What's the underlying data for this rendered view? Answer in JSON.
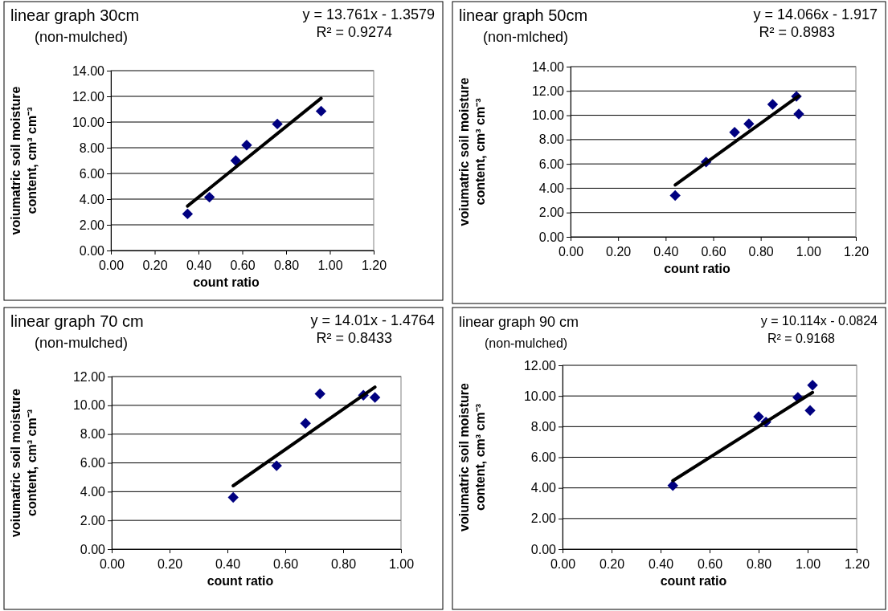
{
  "chart_data": [
    {
      "type": "scatter",
      "title": "linear graph 30cm",
      "subtitle": "(non-mulched)",
      "xlabel": "count ratio",
      "ylabel": "voiumatric soil moisture content, cm³ cm⁻³",
      "annotations": [
        "y = 13.761x - 1.3579",
        "R² = 0.9274"
      ],
      "grid": "y",
      "xlim": [
        0,
        1.2
      ],
      "xticks": [
        {
          "value": 0,
          "label": "0.00"
        },
        {
          "value": 0.2,
          "label": "0.20"
        },
        {
          "value": 0.4,
          "label": "0.40"
        },
        {
          "value": 0.6,
          "label": "0.60"
        },
        {
          "value": 0.8,
          "label": "0.80"
        },
        {
          "value": 1,
          "label": "1.00"
        },
        {
          "value": 1.2,
          "label": "1.20"
        }
      ],
      "ylim": [
        0,
        14
      ],
      "yticks": [
        {
          "value": 0,
          "label": "0.00"
        },
        {
          "value": 2,
          "label": "2.00"
        },
        {
          "value": 4,
          "label": "4.00"
        },
        {
          "value": 6,
          "label": "6.00"
        },
        {
          "value": 8,
          "label": "8.00"
        },
        {
          "value": 10,
          "label": "10.00"
        },
        {
          "value": 12,
          "label": "12.00"
        },
        {
          "value": 14,
          "label": "14.00"
        }
      ],
      "series": [
        {
          "marker": "diamond",
          "color": "#000080",
          "x": [
            0.35,
            0.45,
            0.57,
            0.62,
            0.76,
            0.96
          ],
          "values": [
            2.85,
            4.15,
            7.0,
            8.2,
            9.85,
            10.85
          ]
        },
        {
          "type": "line",
          "color": "#000000",
          "x": [
            0.35,
            0.96
          ],
          "values": [
            3.46,
            11.85
          ]
        }
      ]
    },
    {
      "type": "scatter",
      "title": "linear graph 50cm",
      "subtitle": "(non-mlched)",
      "xlabel": "count ratio",
      "ylabel": "voiumatric soil moisture content, cm³ cm⁻³",
      "annotations": [
        "y = 14.066x - 1.917",
        "R² = 0.8983"
      ],
      "grid": "y",
      "xlim": [
        0,
        1.2
      ],
      "xticks": [
        {
          "value": 0,
          "label": "0.00"
        },
        {
          "value": 0.2,
          "label": "0.20"
        },
        {
          "value": 0.4,
          "label": "0.40"
        },
        {
          "value": 0.6,
          "label": "0.60"
        },
        {
          "value": 0.8,
          "label": "0.80"
        },
        {
          "value": 1,
          "label": "1.00"
        },
        {
          "value": 1.2,
          "label": "1.20"
        }
      ],
      "ylim": [
        0,
        14
      ],
      "yticks": [
        {
          "value": 0,
          "label": "0.00"
        },
        {
          "value": 2,
          "label": "2.00"
        },
        {
          "value": 4,
          "label": "4.00"
        },
        {
          "value": 6,
          "label": "6.00"
        },
        {
          "value": 8,
          "label": "8.00"
        },
        {
          "value": 10,
          "label": "10.00"
        },
        {
          "value": 12,
          "label": "12.00"
        },
        {
          "value": 14,
          "label": "14.00"
        }
      ],
      "series": [
        {
          "marker": "diamond",
          "color": "#000080",
          "x": [
            0.44,
            0.57,
            0.69,
            0.75,
            0.85,
            0.95,
            0.96
          ],
          "values": [
            3.4,
            6.15,
            8.6,
            9.3,
            10.9,
            11.55,
            10.1
          ]
        },
        {
          "type": "line",
          "color": "#000000",
          "x": [
            0.44,
            0.96
          ],
          "values": [
            4.27,
            11.59
          ]
        }
      ]
    },
    {
      "type": "scatter",
      "title": "linear graph 70 cm",
      "subtitle": "(non-mulched)",
      "xlabel": "count ratio",
      "ylabel": "voiumatric soil moisture content, cm³ cm⁻³",
      "annotations": [
        "y = 14.01x - 1.4764",
        "R² = 0.8433"
      ],
      "grid": "y",
      "xlim": [
        0,
        1
      ],
      "xticks": [
        {
          "value": 0,
          "label": "0.00"
        },
        {
          "value": 0.2,
          "label": "0.20"
        },
        {
          "value": 0.4,
          "label": "0.40"
        },
        {
          "value": 0.6,
          "label": "0.60"
        },
        {
          "value": 0.8,
          "label": "0.80"
        },
        {
          "value": 1,
          "label": "1.00"
        }
      ],
      "ylim": [
        0,
        12
      ],
      "yticks": [
        {
          "value": 0,
          "label": "0.00"
        },
        {
          "value": 2,
          "label": "2.00"
        },
        {
          "value": 4,
          "label": "4.00"
        },
        {
          "value": 6,
          "label": "6.00"
        },
        {
          "value": 8,
          "label": "8.00"
        },
        {
          "value": 10,
          "label": "10.00"
        },
        {
          "value": 12,
          "label": "12.00"
        }
      ],
      "series": [
        {
          "marker": "diamond",
          "color": "#000080",
          "x": [
            0.42,
            0.57,
            0.67,
            0.72,
            0.87,
            0.91
          ],
          "values": [
            3.6,
            5.8,
            8.75,
            10.8,
            10.7,
            10.55
          ]
        },
        {
          "type": "line",
          "color": "#000000",
          "x": [
            0.42,
            0.91
          ],
          "values": [
            4.41,
            11.27
          ]
        }
      ]
    },
    {
      "type": "scatter",
      "title": "linear graph 90 cm",
      "subtitle": "(non-mulched)",
      "xlabel": "count ratio",
      "ylabel": "voiumatric soil moisture content, cm³ cm⁻³",
      "annotations": [
        "y = 10.114x - 0.0824",
        "R² = 0.9168"
      ],
      "grid": "y",
      "xlim": [
        0,
        1.2
      ],
      "xticks": [
        {
          "value": 0,
          "label": "0.00"
        },
        {
          "value": 0.2,
          "label": "0.20"
        },
        {
          "value": 0.4,
          "label": "0.40"
        },
        {
          "value": 0.6,
          "label": "0.60"
        },
        {
          "value": 0.8,
          "label": "0.80"
        },
        {
          "value": 1,
          "label": "1.00"
        },
        {
          "value": 1.2,
          "label": "1.20"
        }
      ],
      "ylim": [
        0,
        12
      ],
      "yticks": [
        {
          "value": 0,
          "label": "0.00"
        },
        {
          "value": 2,
          "label": "2.00"
        },
        {
          "value": 4,
          "label": "4.00"
        },
        {
          "value": 6,
          "label": "6.00"
        },
        {
          "value": 8,
          "label": "8.00"
        },
        {
          "value": 10,
          "label": "10.00"
        },
        {
          "value": 12,
          "label": "12.00"
        }
      ],
      "series": [
        {
          "marker": "diamond",
          "color": "#000080",
          "x": [
            0.45,
            0.8,
            0.83,
            0.96,
            1.01,
            1.02
          ],
          "values": [
            4.15,
            8.65,
            8.3,
            9.9,
            9.05,
            10.7
          ]
        },
        {
          "type": "line",
          "color": "#000000",
          "x": [
            0.45,
            1.02
          ],
          "values": [
            4.47,
            10.23
          ]
        }
      ]
    }
  ]
}
